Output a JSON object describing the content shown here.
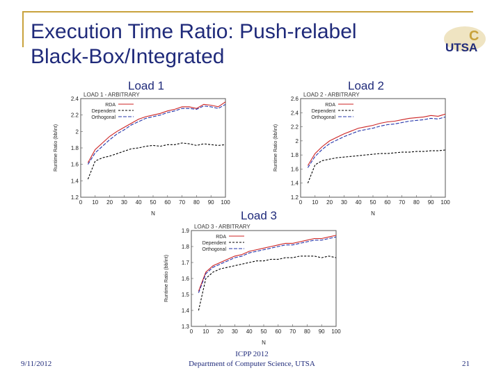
{
  "slide": {
    "title_line1": "Execution Time Ratio: Push-relabel",
    "title_line2": "Black-Box/Integrated",
    "footer_date": "9/11/2012",
    "footer_conf": "ICPP 2012",
    "footer_dept": "Department of Computer Science, UTSA",
    "page_number": "21",
    "logo_text": "UTSA",
    "logo_letter": "C"
  },
  "colors": {
    "title": "#1f2a7a",
    "accent": "#c8a23c",
    "rda": "#cc2222",
    "dependent": "#000000",
    "orthogonal": "#2233aa"
  },
  "labels": {
    "load1": "Load 1",
    "load2": "Load 2",
    "load3": "Load 3"
  },
  "chart_data": [
    {
      "type": "line",
      "title": "LOAD 1 - ARBITRARY",
      "xlabel": "N",
      "ylabel": "Runtime Ratio (bb/int)",
      "xlim": [
        0,
        100
      ],
      "ylim": [
        1.2,
        2.4
      ],
      "xticks": [
        0,
        10,
        20,
        30,
        40,
        50,
        60,
        70,
        80,
        90,
        100
      ],
      "yticks": [
        1.2,
        1.4,
        1.6,
        1.8,
        2,
        2.2,
        2.4
      ],
      "x": [
        5,
        10,
        15,
        20,
        25,
        30,
        35,
        40,
        45,
        50,
        55,
        60,
        65,
        70,
        75,
        80,
        85,
        90,
        95,
        100
      ],
      "series": [
        {
          "name": "RDA",
          "values": [
            1.62,
            1.78,
            1.86,
            1.94,
            2.0,
            2.05,
            2.1,
            2.15,
            2.18,
            2.2,
            2.22,
            2.25,
            2.27,
            2.3,
            2.3,
            2.28,
            2.33,
            2.32,
            2.3,
            2.36
          ]
        },
        {
          "name": "Dependent",
          "values": [
            1.42,
            1.64,
            1.68,
            1.7,
            1.73,
            1.76,
            1.79,
            1.8,
            1.82,
            1.83,
            1.82,
            1.84,
            1.84,
            1.86,
            1.85,
            1.83,
            1.85,
            1.84,
            1.83,
            1.84
          ]
        },
        {
          "name": "Orthogonal",
          "values": [
            1.6,
            1.74,
            1.82,
            1.9,
            1.97,
            2.02,
            2.08,
            2.12,
            2.16,
            2.18,
            2.2,
            2.23,
            2.25,
            2.28,
            2.28,
            2.27,
            2.31,
            2.3,
            2.28,
            2.33
          ]
        }
      ],
      "legend": "top-left"
    },
    {
      "type": "line",
      "title": "LOAD 2 - ARBITRARY",
      "xlabel": "N",
      "ylabel": "Runtime Ratio (bb/int)",
      "xlim": [
        0,
        100
      ],
      "ylim": [
        1.2,
        2.6
      ],
      "xticks": [
        0,
        10,
        20,
        30,
        40,
        50,
        60,
        70,
        80,
        90,
        100
      ],
      "yticks": [
        1.2,
        1.4,
        1.6,
        1.8,
        2,
        2.2,
        2.4,
        2.6
      ],
      "x": [
        5,
        10,
        15,
        20,
        25,
        30,
        35,
        40,
        45,
        50,
        55,
        60,
        65,
        70,
        75,
        80,
        85,
        90,
        95,
        100
      ],
      "series": [
        {
          "name": "RDA",
          "values": [
            1.65,
            1.82,
            1.92,
            2.0,
            2.05,
            2.1,
            2.14,
            2.18,
            2.2,
            2.22,
            2.25,
            2.27,
            2.28,
            2.3,
            2.32,
            2.33,
            2.34,
            2.36,
            2.35,
            2.38
          ]
        },
        {
          "name": "Dependent",
          "values": [
            1.4,
            1.66,
            1.72,
            1.74,
            1.76,
            1.77,
            1.78,
            1.79,
            1.8,
            1.81,
            1.82,
            1.82,
            1.83,
            1.84,
            1.84,
            1.85,
            1.85,
            1.86,
            1.86,
            1.87
          ]
        },
        {
          "name": "Orthogonal",
          "values": [
            1.62,
            1.78,
            1.88,
            1.96,
            2.01,
            2.06,
            2.1,
            2.14,
            2.16,
            2.18,
            2.21,
            2.23,
            2.24,
            2.26,
            2.28,
            2.29,
            2.3,
            2.32,
            2.31,
            2.34
          ]
        }
      ],
      "legend": "top-left"
    },
    {
      "type": "line",
      "title": "LOAD 3 - ARBITRARY",
      "xlabel": "N",
      "ylabel": "Runtime Ratio (bb/int)",
      "xlim": [
        0,
        100
      ],
      "ylim": [
        1.3,
        1.9
      ],
      "xticks": [
        0,
        10,
        20,
        30,
        40,
        50,
        60,
        70,
        80,
        90,
        100
      ],
      "yticks": [
        1.3,
        1.4,
        1.5,
        1.6,
        1.7,
        1.8,
        1.9
      ],
      "x": [
        5,
        10,
        15,
        20,
        25,
        30,
        35,
        40,
        45,
        50,
        55,
        60,
        65,
        70,
        75,
        80,
        85,
        90,
        95,
        100
      ],
      "series": [
        {
          "name": "RDA",
          "values": [
            1.52,
            1.64,
            1.68,
            1.7,
            1.72,
            1.74,
            1.75,
            1.77,
            1.78,
            1.79,
            1.8,
            1.81,
            1.82,
            1.82,
            1.83,
            1.84,
            1.85,
            1.85,
            1.86,
            1.87
          ]
        },
        {
          "name": "Dependent",
          "values": [
            1.4,
            1.6,
            1.64,
            1.66,
            1.67,
            1.68,
            1.69,
            1.7,
            1.71,
            1.71,
            1.72,
            1.72,
            1.73,
            1.73,
            1.74,
            1.74,
            1.74,
            1.73,
            1.74,
            1.73
          ]
        },
        {
          "name": "Orthogonal",
          "values": [
            1.51,
            1.63,
            1.67,
            1.69,
            1.71,
            1.73,
            1.74,
            1.76,
            1.77,
            1.78,
            1.79,
            1.8,
            1.81,
            1.81,
            1.82,
            1.83,
            1.84,
            1.84,
            1.85,
            1.86
          ]
        }
      ],
      "legend": "top-left"
    }
  ]
}
